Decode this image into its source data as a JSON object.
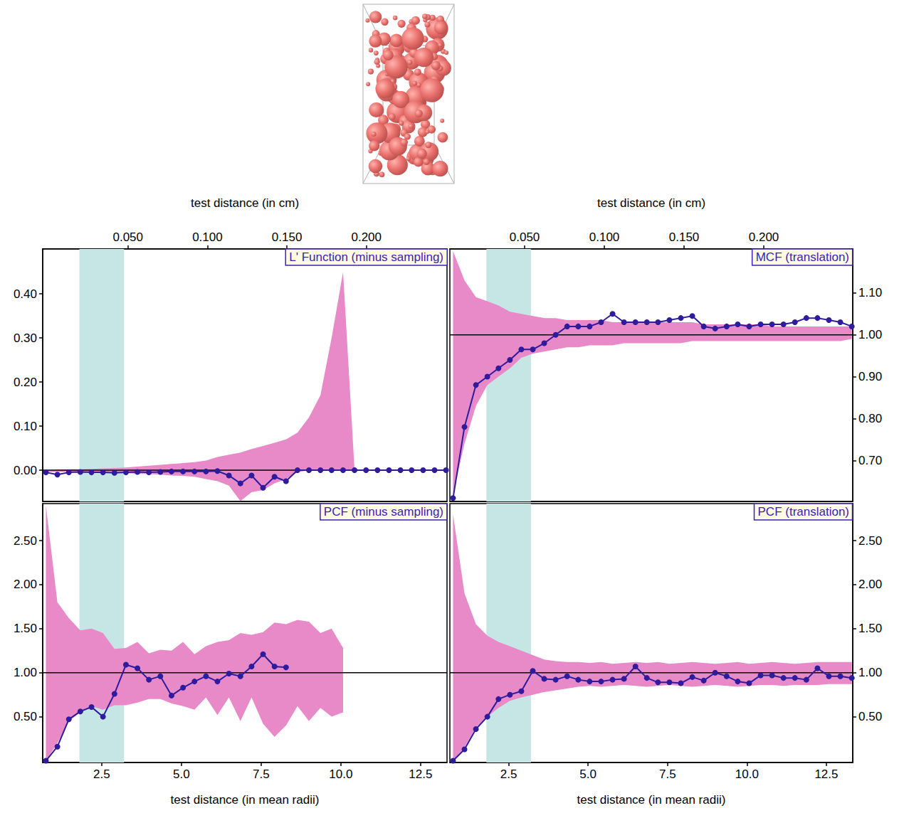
{
  "chart_data": [
    {
      "type": "line",
      "title": "L' Function (minus sampling)",
      "x2label": "test distance (in cm)",
      "x2lim": [
        -0.0036,
        0.2507
      ],
      "x2ticks": [
        {
          "value": 0.05,
          "label": "0.050"
        },
        {
          "value": 0.1,
          "label": "0.100"
        },
        {
          "value": 0.15,
          "label": "0.150"
        },
        {
          "value": 0.2,
          "label": "0.200"
        }
      ],
      "xlim": [
        0.65,
        13.33
      ],
      "x": [
        0.75,
        1.11,
        1.47,
        1.83,
        2.18,
        2.54,
        2.9,
        3.26,
        3.62,
        3.98,
        4.34,
        4.69,
        5.05,
        5.41,
        5.77,
        6.13,
        6.49,
        6.85,
        7.2,
        7.56,
        7.92,
        8.28,
        8.64,
        9.0,
        9.36,
        9.71,
        10.07,
        10.43,
        10.79,
        11.15,
        11.51,
        11.87,
        12.22,
        12.58,
        12.94,
        13.3
      ],
      "ylim": [
        -0.071,
        0.502
      ],
      "yticks": [
        {
          "value": 0,
          "label": "0.00"
        },
        {
          "value": 0.1,
          "label": "0.10"
        },
        {
          "value": 0.2,
          "label": "0.20"
        },
        {
          "value": 0.3,
          "label": "0.30"
        },
        {
          "value": 0.4,
          "label": "0.40"
        }
      ],
      "series": [
        {
          "color": "#2e1b9e",
          "marker": "circle",
          "values": [
            -0.005,
            -0.01,
            -0.005,
            -0.004,
            -0.005,
            -0.005,
            -0.006,
            -0.005,
            -0.004,
            -0.005,
            -0.004,
            -0.003,
            -0.003,
            -0.003,
            -0.003,
            -0.002,
            -0.012,
            -0.03,
            -0.012,
            -0.04,
            -0.015,
            -0.025,
            0,
            0,
            0,
            0,
            0,
            0,
            0,
            0,
            0,
            0,
            0,
            0,
            0,
            0
          ]
        }
      ],
      "envelope": {
        "color": "#e88ac8",
        "lower": [
          -0.004,
          -0.004,
          -0.004,
          -0.004,
          -0.005,
          -0.005,
          -0.006,
          -0.007,
          -0.008,
          -0.009,
          -0.01,
          -0.012,
          -0.013,
          -0.015,
          -0.02,
          -0.025,
          -0.035,
          -0.07,
          -0.05,
          -0.045,
          -0.03,
          -0.02,
          -0.005,
          0,
          0,
          0,
          0,
          0,
          0,
          0,
          0,
          0,
          0,
          0,
          0,
          0
        ],
        "upper": [
          0,
          0.001,
          0.002,
          0.002,
          0.003,
          0.004,
          0.005,
          0.006,
          0.008,
          0.01,
          0.012,
          0.014,
          0.016,
          0.018,
          0.022,
          0.03,
          0.035,
          0.04,
          0.048,
          0.055,
          0.062,
          0.07,
          0.085,
          0.12,
          0.17,
          0.3,
          0.45,
          0,
          0,
          0,
          0,
          0,
          0,
          0,
          0,
          0
        ]
      },
      "band": {
        "color": "#c6e5e5",
        "range": [
          1.8,
          3.2
        ]
      },
      "reference_y": 0
    },
    {
      "type": "line",
      "title": "MCF (translation)",
      "x2label": "test distance (in cm)",
      "x2lim": [
        0.0031,
        0.2558
      ],
      "x2ticks": [
        {
          "value": 0.05,
          "label": "0.050"
        },
        {
          "value": 0.1,
          "label": "0.100"
        },
        {
          "value": 0.15,
          "label": "0.150"
        },
        {
          "value": 0.2,
          "label": "0.200"
        }
      ],
      "xlim": [
        0.65,
        13.33
      ],
      "x": [
        0.75,
        1.11,
        1.47,
        1.83,
        2.18,
        2.54,
        2.9,
        3.26,
        3.62,
        3.98,
        4.34,
        4.69,
        5.05,
        5.41,
        5.77,
        6.13,
        6.49,
        6.85,
        7.2,
        7.56,
        7.92,
        8.28,
        8.64,
        9.0,
        9.36,
        9.71,
        10.07,
        10.43,
        10.79,
        11.15,
        11.51,
        11.87,
        12.22,
        12.58,
        12.94,
        13.3
      ],
      "ylim": [
        0.602,
        1.205
      ],
      "yticks": [
        {
          "value": 0.7,
          "label": "0.70"
        },
        {
          "value": 0.8,
          "label": "0.80"
        },
        {
          "value": 0.9,
          "label": "0.90"
        },
        {
          "value": 1,
          "label": "1.00"
        },
        {
          "value": 1.1,
          "label": "1.10"
        }
      ],
      "series": [
        {
          "color": "#2e1b9e",
          "marker": "circle",
          "values": [
            0.61,
            0.78,
            0.88,
            0.9,
            0.92,
            0.94,
            0.965,
            0.965,
            0.98,
            1.0,
            1.02,
            1.02,
            1.02,
            1.03,
            1.05,
            1.03,
            1.03,
            1.03,
            1.03,
            1.035,
            1.04,
            1.045,
            1.02,
            1.015,
            1.02,
            1.025,
            1.02,
            1.025,
            1.025,
            1.025,
            1.03,
            1.04,
            1.04,
            1.035,
            1.03,
            1.02
          ]
        }
      ],
      "envelope": {
        "color": "#e88ac8",
        "lower": [
          0.62,
          0.74,
          0.83,
          0.88,
          0.9,
          0.92,
          0.945,
          0.955,
          0.96,
          0.965,
          0.97,
          0.97,
          0.975,
          0.975,
          0.975,
          0.98,
          0.98,
          0.98,
          0.98,
          0.98,
          0.98,
          0.985,
          0.985,
          0.985,
          0.985,
          0.985,
          0.985,
          0.985,
          0.985,
          0.985,
          0.985,
          0.985,
          0.985,
          0.985,
          0.985,
          0.99
        ],
        "upper": [
          1.2,
          1.13,
          1.09,
          1.08,
          1.07,
          1.055,
          1.05,
          1.045,
          1.04,
          1.04,
          1.035,
          1.035,
          1.035,
          1.035,
          1.03,
          1.03,
          1.03,
          1.03,
          1.03,
          1.03,
          1.03,
          1.03,
          1.025,
          1.025,
          1.025,
          1.025,
          1.025,
          1.025,
          1.02,
          1.02,
          1.02,
          1.02,
          1.02,
          1.02,
          1.02,
          1.02
        ]
      },
      "band": {
        "color": "#c6e5e5",
        "range": [
          1.8,
          3.2
        ]
      },
      "reference_y": 1
    },
    {
      "type": "line",
      "title": "PCF (minus sampling)",
      "xlabel": "test distance (in mean radii)",
      "xlim": [
        0.65,
        13.33
      ],
      "xticks": [
        2.5,
        {
          "value": 5,
          "label": "5.0"
        },
        7.5,
        {
          "value": 10,
          "label": "10.0"
        },
        12.5
      ],
      "x": [
        0.75,
        1.11,
        1.47,
        1.83,
        2.18,
        2.54,
        2.9,
        3.26,
        3.62,
        3.98,
        4.34,
        4.69,
        5.05,
        5.41,
        5.77,
        6.13,
        6.49,
        6.85,
        7.2,
        7.56,
        7.92,
        8.28,
        8.64,
        9.0,
        9.36,
        9.71,
        10.07,
        10.43,
        10.79,
        11.15,
        11.51,
        11.87,
        12.22,
        12.58,
        12.94,
        13.3
      ],
      "ylim": [
        -0.02,
        2.92
      ],
      "yticks": [
        {
          "value": 0.5,
          "label": "0.50"
        },
        {
          "value": 1,
          "label": "1.00"
        },
        {
          "value": 1.5,
          "label": "1.50"
        },
        {
          "value": 2,
          "label": "2.00"
        },
        {
          "value": 2.5,
          "label": "2.50"
        }
      ],
      "series": [
        {
          "color": "#2e1b9e",
          "marker": "circle",
          "values": [
            0,
            0.16,
            0.47,
            0.56,
            0.61,
            0.5,
            0.76,
            1.09,
            1.05,
            0.92,
            0.96,
            0.74,
            0.83,
            0.9,
            0.96,
            0.9,
            0.99,
            0.96,
            1.07,
            1.21,
            1.07,
            1.06,
            null,
            null,
            null,
            null,
            null,
            null,
            null,
            null,
            null,
            null,
            null,
            null,
            null,
            null
          ]
        }
      ],
      "envelope": {
        "color": "#e88ac8",
        "lower": [
          0,
          0.2,
          0.45,
          0.55,
          0.62,
          0.58,
          0.63,
          0.63,
          0.66,
          0.7,
          0.7,
          0.65,
          0.62,
          0.58,
          0.72,
          0.52,
          0.72,
          0.45,
          0.72,
          0.42,
          0.27,
          0.4,
          0.62,
          0.45,
          0.6,
          0.5,
          0.55,
          null,
          null,
          null,
          null,
          null,
          null,
          null,
          null,
          null
        ],
        "upper": [
          2.9,
          1.8,
          1.62,
          1.48,
          1.5,
          1.45,
          1.27,
          1.28,
          1.35,
          1.22,
          1.26,
          1.25,
          1.35,
          1.21,
          1.3,
          1.35,
          1.37,
          1.45,
          1.43,
          1.46,
          1.57,
          1.55,
          1.6,
          1.58,
          1.45,
          1.5,
          1.28,
          null,
          null,
          null,
          null,
          null,
          null,
          null,
          null,
          null
        ]
      },
      "band": {
        "color": "#c6e5e5",
        "range": [
          1.8,
          3.2
        ]
      },
      "reference_y": 1
    },
    {
      "type": "line",
      "title": "PCF (translation)",
      "xlabel": "test distance (in mean radii)",
      "xlim": [
        0.65,
        13.33
      ],
      "xticks": [
        2.5,
        {
          "value": 5,
          "label": "5.0"
        },
        7.5,
        {
          "value": 10,
          "label": "10.0"
        },
        12.5
      ],
      "x": [
        0.75,
        1.11,
        1.47,
        1.83,
        2.18,
        2.54,
        2.9,
        3.26,
        3.62,
        3.98,
        4.34,
        4.69,
        5.05,
        5.41,
        5.77,
        6.13,
        6.49,
        6.85,
        7.2,
        7.56,
        7.92,
        8.28,
        8.64,
        9.0,
        9.36,
        9.71,
        10.07,
        10.43,
        10.79,
        11.15,
        11.51,
        11.87,
        12.22,
        12.58,
        12.94,
        13.3
      ],
      "ylim": [
        -0.02,
        2.92
      ],
      "yticks": [
        {
          "value": 0.5,
          "label": "0.50"
        },
        {
          "value": 1,
          "label": "1.00"
        },
        {
          "value": 1.5,
          "label": "1.50"
        },
        {
          "value": 2,
          "label": "2.00"
        },
        {
          "value": 2.5,
          "label": "2.50"
        }
      ],
      "series": [
        {
          "color": "#2e1b9e",
          "marker": "circle",
          "values": [
            0,
            0.13,
            0.36,
            0.5,
            0.7,
            0.75,
            0.79,
            1.02,
            0.93,
            0.92,
            0.96,
            0.92,
            0.9,
            0.9,
            0.92,
            0.93,
            1.07,
            0.94,
            0.89,
            0.89,
            0.88,
            0.95,
            0.91,
            1.0,
            0.96,
            0.9,
            0.88,
            0.97,
            0.97,
            0.94,
            0.94,
            0.92,
            1.05,
            0.96,
            0.96,
            0.94
          ]
        }
      ],
      "envelope": {
        "color": "#e88ac8",
        "lower": [
          0,
          0.15,
          0.38,
          0.5,
          0.6,
          0.68,
          0.72,
          0.75,
          0.78,
          0.8,
          0.82,
          0.84,
          0.85,
          0.84,
          0.85,
          0.86,
          0.85,
          0.84,
          0.85,
          0.86,
          0.85,
          0.84,
          0.85,
          0.86,
          0.85,
          0.84,
          0.85,
          0.86,
          0.86,
          0.85,
          0.86,
          0.86,
          0.86,
          0.87,
          0.87,
          0.87
        ],
        "upper": [
          2.8,
          1.9,
          1.55,
          1.42,
          1.35,
          1.3,
          1.25,
          1.2,
          1.15,
          1.13,
          1.12,
          1.12,
          1.11,
          1.12,
          1.1,
          1.11,
          1.12,
          1.11,
          1.12,
          1.1,
          1.11,
          1.12,
          1.11,
          1.1,
          1.11,
          1.12,
          1.1,
          1.11,
          1.12,
          1.11,
          1.1,
          1.11,
          1.12,
          1.12,
          1.12,
          1.12
        ]
      },
      "band": {
        "color": "#c6e5e5",
        "range": [
          1.8,
          3.2
        ]
      },
      "reference_y": 1
    }
  ]
}
